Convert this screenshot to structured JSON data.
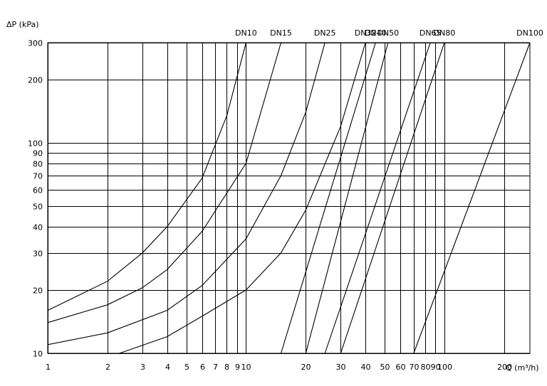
{
  "chart_data": {
    "type": "line",
    "xscale": "log",
    "yscale": "log",
    "xlim": [
      1,
      270
    ],
    "ylim": [
      10,
      300
    ],
    "ylabel": "ΔP (kPa)",
    "xlabel": "Q (m³/h)",
    "grid": true,
    "x_ticks": [
      {
        "v": 1,
        "t": "1"
      },
      {
        "v": 2,
        "t": "2"
      },
      {
        "v": 3,
        "t": "3"
      },
      {
        "v": 4,
        "t": "4"
      },
      {
        "v": 5,
        "t": "5"
      },
      {
        "v": 6,
        "t": "6"
      },
      {
        "v": 7,
        "t": "7"
      },
      {
        "v": 8,
        "t": "8"
      },
      {
        "v": 9,
        "t": "9"
      },
      {
        "v": 10,
        "t": "10"
      },
      {
        "v": 20,
        "t": "20"
      },
      {
        "v": 30,
        "t": "30"
      },
      {
        "v": 40,
        "t": "40"
      },
      {
        "v": 50,
        "t": "50"
      },
      {
        "v": 60,
        "t": "60"
      },
      {
        "v": 70,
        "t": "70"
      },
      {
        "v": 80,
        "t": "80"
      },
      {
        "v": 90,
        "t": "90"
      },
      {
        "v": 100,
        "t": "100"
      },
      {
        "v": 200,
        "t": "200"
      }
    ],
    "y_ticks": [
      {
        "v": 10,
        "t": "10"
      },
      {
        "v": 20,
        "t": "20"
      },
      {
        "v": 30,
        "t": "30"
      },
      {
        "v": 40,
        "t": "40"
      },
      {
        "v": 50,
        "t": "50"
      },
      {
        "v": 60,
        "t": "60"
      },
      {
        "v": 70,
        "t": "70"
      },
      {
        "v": 80,
        "t": "80"
      },
      {
        "v": 90,
        "t": "90"
      },
      {
        "v": 100,
        "t": "100"
      },
      {
        "v": 200,
        "t": "200"
      },
      {
        "v": 300,
        "t": "300"
      }
    ],
    "series": [
      {
        "name": "DN10",
        "x": [
          1,
          2,
          3,
          4,
          6,
          8,
          10
        ],
        "y": [
          16,
          22,
          30,
          40,
          68,
          135,
          300
        ]
      },
      {
        "name": "DN15",
        "x": [
          1,
          2,
          3,
          4,
          6,
          10,
          15
        ],
        "y": [
          14,
          17,
          20.5,
          25,
          38,
          80,
          300
        ]
      },
      {
        "name": "DN25",
        "x": [
          1,
          2,
          4,
          6,
          10,
          15,
          20,
          25
        ],
        "y": [
          11,
          12.5,
          16,
          21,
          35,
          70,
          140,
          300
        ]
      },
      {
        "name": "DN32",
        "x": [
          2.3,
          4,
          6,
          10,
          15,
          20,
          30,
          40
        ],
        "y": [
          10,
          12,
          15,
          20,
          30,
          48,
          120,
          300
        ]
      },
      {
        "name": "DN40",
        "x": [
          15,
          45
        ],
        "y": [
          10,
          300
        ]
      },
      {
        "name": "DN50",
        "x": [
          20,
          52
        ],
        "y": [
          10,
          300
        ]
      },
      {
        "name": "DN65",
        "x": [
          25,
          85
        ],
        "y": [
          10,
          300
        ]
      },
      {
        "name": "DN80",
        "x": [
          30,
          100
        ],
        "y": [
          10,
          300
        ]
      },
      {
        "name": "DN100",
        "x": [
          70,
          270
        ],
        "y": [
          10,
          300
        ]
      }
    ],
    "series_labels": [
      "DN10",
      "DN15",
      "DN25",
      "DN32",
      "DN40",
      "DN50",
      "DN65",
      "DN80",
      "DN100"
    ]
  }
}
